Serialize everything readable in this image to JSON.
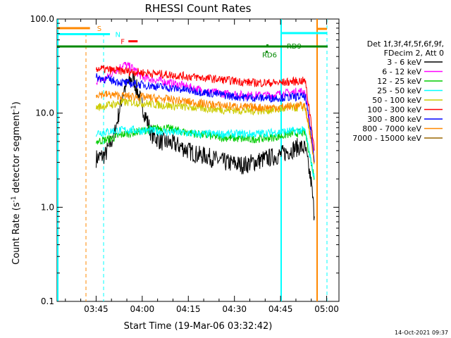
{
  "chart_data": {
    "type": "line",
    "title": "RHESSI Count Rates",
    "xlabel": "Start Time (19-Mar-06 03:32:42)",
    "ylabel_main": "Count Rate (s",
    "ylabel_sup1": "-1",
    "ylabel_mid": " detector segment",
    "ylabel_sup2": "-1",
    "ylabel_end": ")",
    "y_scale": "log",
    "ylim": [
      0.1,
      100.0
    ],
    "xlim_minutes": [
      -12.7,
      79.0
    ],
    "y_ticks": [
      {
        "value": 100.0,
        "label": "100.0"
      },
      {
        "value": 10.0,
        "label": "10.0"
      },
      {
        "value": 1.0,
        "label": "1.0"
      },
      {
        "value": 0.1,
        "label": "0.1"
      }
    ],
    "x_ticks": [
      {
        "value": 0,
        "label": "03:45"
      },
      {
        "value": 15,
        "label": "04:00"
      },
      {
        "value": 30,
        "label": "04:15"
      },
      {
        "value": 45,
        "label": "04:30"
      },
      {
        "value": 60,
        "label": "04:45"
      },
      {
        "value": 75,
        "label": "05:00"
      }
    ],
    "legend_header": [
      "Det 1f,3f,4f,5f,6f,9f,",
      "FDecim 2, Att 0"
    ],
    "series": [
      {
        "name": "3 - 6 keV",
        "color": "#000000",
        "values": [
          [
            0,
            3.3
          ],
          [
            3,
            3.6
          ],
          [
            6,
            6
          ],
          [
            9,
            18
          ],
          [
            12,
            24
          ],
          [
            15,
            12
          ],
          [
            18,
            6
          ],
          [
            21,
            5
          ],
          [
            24,
            4.8
          ],
          [
            27,
            4.5
          ],
          [
            30,
            4
          ],
          [
            33,
            3.6
          ],
          [
            36,
            3.5
          ],
          [
            39,
            3.2
          ],
          [
            42,
            3
          ],
          [
            45,
            2.9
          ],
          [
            48,
            2.8
          ],
          [
            51,
            3
          ],
          [
            54,
            3.2
          ],
          [
            57,
            3.4
          ],
          [
            60,
            3.6
          ],
          [
            63,
            4
          ],
          [
            66,
            4.4
          ],
          [
            68,
            4.2
          ],
          [
            70,
            1.8
          ],
          [
            71,
            0.8
          ]
        ]
      },
      {
        "name": "6 - 12 keV",
        "color": "#ff00ff",
        "values": [
          [
            0,
            22
          ],
          [
            3,
            23
          ],
          [
            6,
            28
          ],
          [
            9,
            33
          ],
          [
            12,
            30
          ],
          [
            15,
            24
          ],
          [
            18,
            23
          ],
          [
            21,
            22
          ],
          [
            24,
            21
          ],
          [
            27,
            20
          ],
          [
            30,
            19
          ],
          [
            33,
            18
          ],
          [
            36,
            17
          ],
          [
            39,
            16.5
          ],
          [
            42,
            16
          ],
          [
            45,
            16
          ],
          [
            48,
            15.5
          ],
          [
            51,
            15.5
          ],
          [
            54,
            15.5
          ],
          [
            57,
            15.5
          ],
          [
            60,
            16
          ],
          [
            63,
            16.5
          ],
          [
            66,
            17
          ],
          [
            68,
            17
          ],
          [
            70,
            6
          ],
          [
            71,
            3
          ]
        ]
      },
      {
        "name": "12 - 25 keV",
        "color": "#00cc00",
        "values": [
          [
            0,
            5
          ],
          [
            3,
            5.2
          ],
          [
            6,
            5.5
          ],
          [
            9,
            6
          ],
          [
            12,
            6.2
          ],
          [
            15,
            6.5
          ],
          [
            18,
            6.8
          ],
          [
            21,
            7
          ],
          [
            24,
            6.8
          ],
          [
            27,
            6.5
          ],
          [
            30,
            6.2
          ],
          [
            33,
            6
          ],
          [
            36,
            5.8
          ],
          [
            39,
            5.6
          ],
          [
            42,
            5.5
          ],
          [
            45,
            5.4
          ],
          [
            48,
            5.3
          ],
          [
            51,
            5.3
          ],
          [
            54,
            5.4
          ],
          [
            57,
            5.5
          ],
          [
            60,
            5.7
          ],
          [
            63,
            6
          ],
          [
            66,
            6.2
          ],
          [
            68,
            6.2
          ],
          [
            70,
            3
          ],
          [
            71,
            2
          ]
        ]
      },
      {
        "name": "25 - 50 keV",
        "color": "#00ffff",
        "values": [
          [
            0,
            6.2
          ],
          [
            3,
            6.3
          ],
          [
            6,
            6.5
          ],
          [
            9,
            6.6
          ],
          [
            12,
            6.6
          ],
          [
            15,
            6.5
          ],
          [
            18,
            6.5
          ],
          [
            21,
            6.4
          ],
          [
            24,
            6.3
          ],
          [
            27,
            6.2
          ],
          [
            30,
            6.1
          ],
          [
            33,
            6
          ],
          [
            36,
            6
          ],
          [
            39,
            6
          ],
          [
            42,
            6
          ],
          [
            45,
            6
          ],
          [
            48,
            6
          ],
          [
            51,
            6
          ],
          [
            54,
            6.1
          ],
          [
            57,
            6.2
          ],
          [
            60,
            6.3
          ],
          [
            63,
            6.4
          ],
          [
            66,
            6.5
          ],
          [
            68,
            6.5
          ],
          [
            70,
            3
          ],
          [
            71,
            2
          ]
        ]
      },
      {
        "name": "50 - 100 keV",
        "color": "#cccc00",
        "values": [
          [
            0,
            11.5
          ],
          [
            3,
            12
          ],
          [
            6,
            12.5
          ],
          [
            9,
            13
          ],
          [
            12,
            13
          ],
          [
            15,
            12.8
          ],
          [
            18,
            12.5
          ],
          [
            21,
            12.2
          ],
          [
            24,
            12
          ],
          [
            27,
            11.8
          ],
          [
            30,
            11.6
          ],
          [
            33,
            11.4
          ],
          [
            36,
            11.2
          ],
          [
            39,
            11
          ],
          [
            42,
            10.8
          ],
          [
            45,
            10.8
          ],
          [
            48,
            10.6
          ],
          [
            51,
            10.6
          ],
          [
            54,
            10.7
          ],
          [
            57,
            10.8
          ],
          [
            60,
            11
          ],
          [
            63,
            11.3
          ],
          [
            66,
            11.5
          ],
          [
            68,
            11.5
          ],
          [
            70,
            5
          ],
          [
            71,
            3
          ]
        ]
      },
      {
        "name": "100 - 300 keV",
        "color": "#ff0000",
        "values": [
          [
            0,
            30
          ],
          [
            3,
            29
          ],
          [
            6,
            28.5
          ],
          [
            9,
            28
          ],
          [
            12,
            27.5
          ],
          [
            15,
            27
          ],
          [
            18,
            26.5
          ],
          [
            21,
            26
          ],
          [
            24,
            25.5
          ],
          [
            27,
            25
          ],
          [
            30,
            24.5
          ],
          [
            33,
            24
          ],
          [
            36,
            23.5
          ],
          [
            39,
            23
          ],
          [
            42,
            22.5
          ],
          [
            45,
            22
          ],
          [
            48,
            21.5
          ],
          [
            51,
            21
          ],
          [
            54,
            21
          ],
          [
            57,
            21
          ],
          [
            60,
            21
          ],
          [
            63,
            21.5
          ],
          [
            66,
            22
          ],
          [
            68,
            22
          ],
          [
            70,
            8
          ],
          [
            71,
            4
          ]
        ]
      },
      {
        "name": "300 - 800 keV",
        "color": "#0000ff",
        "values": [
          [
            0,
            24
          ],
          [
            3,
            23
          ],
          [
            6,
            22
          ],
          [
            9,
            21
          ],
          [
            12,
            20.5
          ],
          [
            15,
            20
          ],
          [
            18,
            19.5
          ],
          [
            21,
            19
          ],
          [
            24,
            18.5
          ],
          [
            27,
            18
          ],
          [
            30,
            17.5
          ],
          [
            33,
            17
          ],
          [
            36,
            16.5
          ],
          [
            39,
            16
          ],
          [
            42,
            15.5
          ],
          [
            45,
            15
          ],
          [
            48,
            14.8
          ],
          [
            51,
            14.6
          ],
          [
            54,
            14.5
          ],
          [
            57,
            14.5
          ],
          [
            60,
            14.6
          ],
          [
            63,
            14.8
          ],
          [
            66,
            15
          ],
          [
            68,
            15
          ],
          [
            70,
            6
          ],
          [
            71,
            3
          ]
        ]
      },
      {
        "name": "800 - 7000 keV",
        "color": "#ff8800",
        "values": [
          [
            0,
            16
          ],
          [
            3,
            15.8
          ],
          [
            6,
            15.5
          ],
          [
            9,
            15.2
          ],
          [
            12,
            15
          ],
          [
            15,
            14.8
          ],
          [
            18,
            14.5
          ],
          [
            21,
            14.2
          ],
          [
            24,
            14
          ],
          [
            27,
            13.6
          ],
          [
            30,
            13.2
          ],
          [
            33,
            12.8
          ],
          [
            36,
            12.5
          ],
          [
            39,
            12.2
          ],
          [
            42,
            12
          ],
          [
            45,
            11.8
          ],
          [
            48,
            11.6
          ],
          [
            51,
            11.5
          ],
          [
            54,
            11.5
          ],
          [
            57,
            11.5
          ],
          [
            60,
            11.6
          ],
          [
            63,
            11.8
          ],
          [
            66,
            12
          ],
          [
            68,
            12
          ],
          [
            70,
            5
          ],
          [
            71,
            3
          ]
        ]
      },
      {
        "name": "7000 - 15000 keV",
        "color": "#996600",
        "values": []
      }
    ],
    "annotations": [
      {
        "id": "S",
        "text": "S",
        "color": "#ff8800",
        "x_minutes": 0.3,
        "y": 80,
        "bar": [
          -12.7,
          -2
        ]
      },
      {
        "id": "N",
        "text": "N",
        "color": "#00ffff",
        "x_minutes": 6.2,
        "y": 69,
        "bar": [
          -12.7,
          4.5
        ]
      },
      {
        "id": "F",
        "text": "F",
        "color": "#ff0000",
        "x_minutes": 8.0,
        "y": 58,
        "bar": [
          10.5,
          13.5
        ]
      },
      {
        "id": "RD9",
        "text": "RD9",
        "color": "#008800",
        "x_minutes": 62,
        "y": 52
      },
      {
        "id": "RD6",
        "text": "RD6",
        "color": "#008800",
        "x_minutes": 54,
        "y": 42
      }
    ],
    "timestamp": "14-Oct-2021 09:37"
  }
}
